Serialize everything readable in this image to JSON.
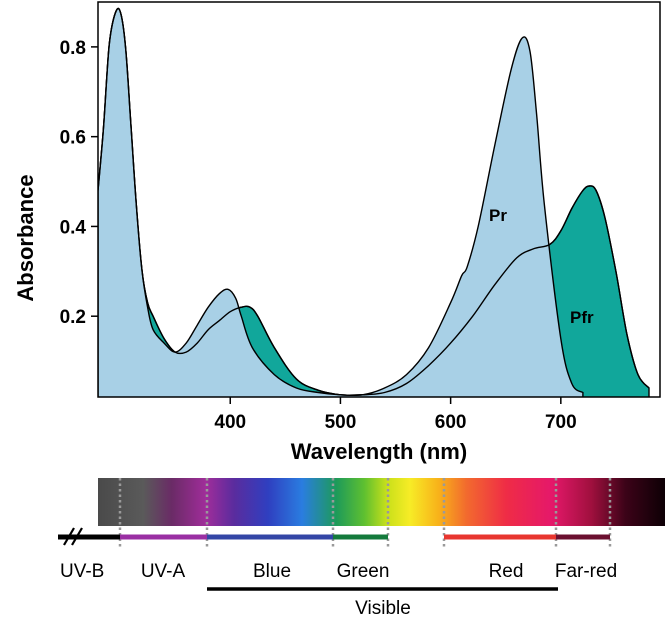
{
  "chart_data": {
    "type": "area",
    "xlabel": "Wavelength (nm)",
    "ylabel": "Absorbance",
    "xlim": [
      280,
      790
    ],
    "ylim": [
      0.02,
      0.9
    ],
    "xticks": [
      400,
      500,
      600,
      700
    ],
    "yticks": [
      0.2,
      0.4,
      0.6,
      0.8
    ],
    "grid": false,
    "series": [
      {
        "name": "Pr",
        "color": "#a8d0e6",
        "x": [
          280,
          285,
          290,
          295,
          300,
          305,
          310,
          315,
          320,
          325,
          330,
          340,
          350,
          360,
          370,
          380,
          390,
          398,
          405,
          410,
          420,
          440,
          460,
          480,
          500,
          520,
          540,
          560,
          580,
          600,
          610,
          615,
          625,
          640,
          655,
          665,
          672,
          678,
          685,
          700,
          710,
          720
        ],
        "y": [
          0.48,
          0.62,
          0.8,
          0.87,
          0.88,
          0.8,
          0.62,
          0.44,
          0.3,
          0.22,
          0.17,
          0.14,
          0.12,
          0.14,
          0.18,
          0.22,
          0.25,
          0.26,
          0.24,
          0.2,
          0.13,
          0.07,
          0.04,
          0.03,
          0.025,
          0.025,
          0.04,
          0.07,
          0.13,
          0.23,
          0.29,
          0.31,
          0.4,
          0.58,
          0.75,
          0.82,
          0.79,
          0.65,
          0.45,
          0.15,
          0.05,
          0.03
        ]
      },
      {
        "name": "Pfr",
        "color": "#11a79b",
        "x": [
          280,
          285,
          290,
          295,
          300,
          305,
          310,
          315,
          320,
          325,
          330,
          340,
          350,
          360,
          370,
          380,
          390,
          400,
          410,
          418,
          425,
          440,
          460,
          480,
          500,
          520,
          540,
          560,
          580,
          600,
          620,
          640,
          660,
          675,
          690,
          700,
          710,
          720,
          726,
          732,
          740,
          750,
          760,
          770,
          780
        ],
        "y": [
          0.48,
          0.62,
          0.8,
          0.87,
          0.88,
          0.8,
          0.62,
          0.44,
          0.3,
          0.23,
          0.2,
          0.15,
          0.12,
          0.12,
          0.14,
          0.17,
          0.19,
          0.21,
          0.22,
          0.22,
          0.2,
          0.13,
          0.06,
          0.035,
          0.025,
          0.025,
          0.03,
          0.05,
          0.09,
          0.14,
          0.2,
          0.27,
          0.33,
          0.35,
          0.36,
          0.39,
          0.44,
          0.48,
          0.49,
          0.48,
          0.42,
          0.3,
          0.16,
          0.07,
          0.04
        ]
      }
    ]
  },
  "spectrum": {
    "bands": [
      {
        "label": "UV-B",
        "line_color": "#000000"
      },
      {
        "label": "UV-A",
        "line_color": "#9a2fa3"
      },
      {
        "label": "Blue",
        "line_color": "#3346a6"
      },
      {
        "label": "Green",
        "line_color": "#147a3c"
      },
      {
        "label": "Red",
        "line_color": "#e8362f"
      },
      {
        "label": "Far-red",
        "line_color": "#6b1030"
      }
    ],
    "visible_label": "Visible"
  }
}
